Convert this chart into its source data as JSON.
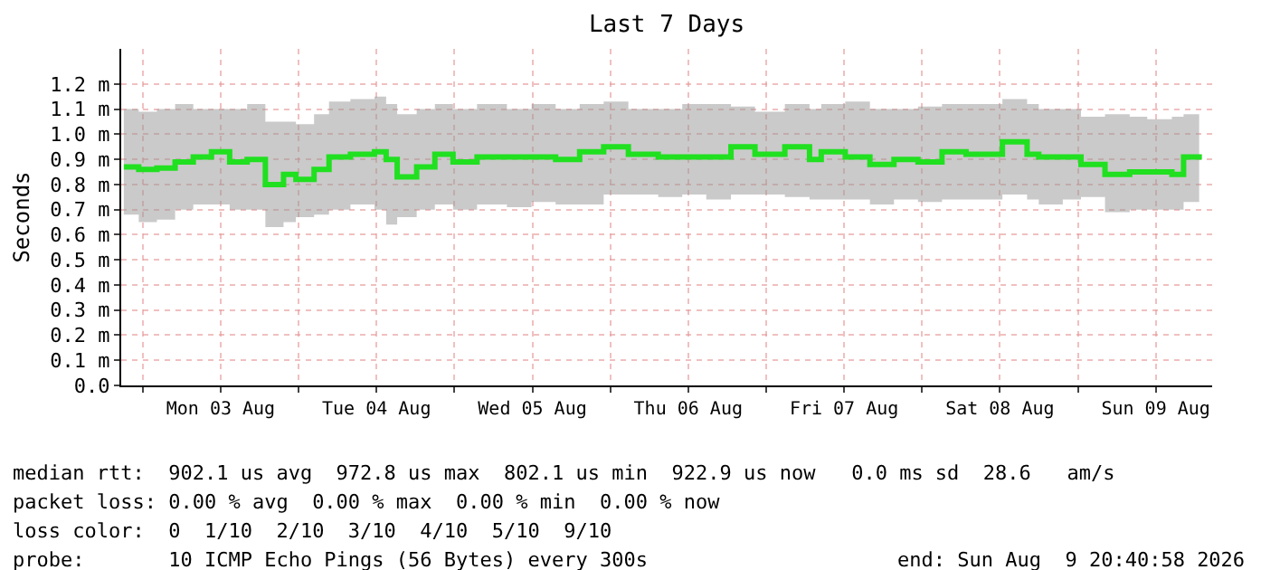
{
  "chart_data": {
    "type": "step",
    "title": "Last 7 Days",
    "ylabel": "Seconds",
    "x": [
      "2026-08-02T21:05",
      "2026-08-02T23:23",
      "2026-08-03T02:11",
      "2026-08-03T04:59",
      "2026-08-03T07:47",
      "2026-08-03T10:35",
      "2026-08-03T13:23",
      "2026-08-03T16:05",
      "2026-08-03T18:53",
      "2026-08-03T21:41",
      "2026-08-03T23:35",
      "2026-08-04T02:23",
      "2026-08-04T04:41",
      "2026-08-04T07:59",
      "2026-08-04T11:41",
      "2026-08-04T13:29",
      "2026-08-04T15:11",
      "2026-08-04T18:11",
      "2026-08-04T20:59",
      "2026-08-04T23:47",
      "2026-08-05T03:29",
      "2026-08-05T08:05",
      "2026-08-05T11:53",
      "2026-08-05T15:35",
      "2026-08-05T19:17",
      "2026-08-05T22:59",
      "2026-08-06T02:47",
      "2026-08-06T07:23",
      "2026-08-06T11:05",
      "2026-08-06T14:47",
      "2026-08-06T18:35",
      "2026-08-06T22:17",
      "2026-08-07T02:53",
      "2026-08-07T06:41",
      "2026-08-07T08:29",
      "2026-08-07T12:11",
      "2026-08-07T15:59",
      "2026-08-07T19:41",
      "2026-08-07T23:23",
      "2026-08-08T03:05",
      "2026-08-08T06:47",
      "2026-08-08T12:23",
      "2026-08-08T16:11",
      "2026-08-08T17:59",
      "2026-08-08T21:41",
      "2026-08-09T00:29",
      "2026-08-09T04:11",
      "2026-08-09T07:59",
      "2026-08-09T10:41",
      "2026-08-09T14:29",
      "2026-08-09T16:17",
      "2026-08-09T18:41"
    ],
    "series": [
      {
        "color": "#20e020",
        "values": [
          0.87,
          0.86,
          0.865,
          0.89,
          0.91,
          0.93,
          0.89,
          0.9,
          0.8,
          0.84,
          0.82,
          0.86,
          0.91,
          0.92,
          0.93,
          0.9,
          0.83,
          0.87,
          0.92,
          0.89,
          0.91,
          0.91,
          0.91,
          0.9,
          0.93,
          0.95,
          0.92,
          0.91,
          0.91,
          0.91,
          0.95,
          0.92,
          0.95,
          0.9,
          0.93,
          0.91,
          0.88,
          0.9,
          0.89,
          0.93,
          0.92,
          0.97,
          0.92,
          0.91,
          0.91,
          0.88,
          0.84,
          0.85,
          0.85,
          0.84,
          0.91,
          0.92
        ],
        "lower": [
          0.68,
          0.65,
          0.66,
          0.7,
          0.72,
          0.72,
          0.7,
          0.7,
          0.63,
          0.65,
          0.67,
          0.68,
          0.7,
          0.72,
          0.7,
          0.64,
          0.67,
          0.7,
          0.72,
          0.7,
          0.72,
          0.71,
          0.73,
          0.72,
          0.72,
          0.76,
          0.76,
          0.75,
          0.76,
          0.74,
          0.76,
          0.76,
          0.75,
          0.74,
          0.74,
          0.74,
          0.72,
          0.74,
          0.73,
          0.74,
          0.74,
          0.76,
          0.74,
          0.72,
          0.74,
          0.75,
          0.69,
          0.7,
          0.7,
          0.7,
          0.73,
          0.75
        ],
        "upper": [
          1.1,
          1.09,
          1.1,
          1.12,
          1.1,
          1.1,
          1.1,
          1.12,
          1.05,
          1.05,
          1.04,
          1.08,
          1.13,
          1.14,
          1.15,
          1.12,
          1.08,
          1.1,
          1.12,
          1.1,
          1.12,
          1.1,
          1.12,
          1.1,
          1.12,
          1.13,
          1.1,
          1.1,
          1.12,
          1.12,
          1.11,
          1.09,
          1.12,
          1.1,
          1.12,
          1.13,
          1.1,
          1.1,
          1.11,
          1.12,
          1.12,
          1.14,
          1.12,
          1.1,
          1.1,
          1.07,
          1.08,
          1.07,
          1.06,
          1.07,
          1.08,
          1.1
        ]
      }
    ],
    "xlim": [
      "2026-08-02T20:41",
      "2026-08-09T20:41"
    ],
    "xticks": [
      {
        "value": "2026-08-03T00:00",
        "label": null
      },
      {
        "value": "2026-08-03T12:00",
        "label": "Mon 03 Aug"
      },
      {
        "value": "2026-08-04T00:00",
        "label": null
      },
      {
        "value": "2026-08-04T12:00",
        "label": "Tue 04 Aug"
      },
      {
        "value": "2026-08-05T00:00",
        "label": null
      },
      {
        "value": "2026-08-05T12:00",
        "label": "Wed 05 Aug"
      },
      {
        "value": "2026-08-06T00:00",
        "label": null
      },
      {
        "value": "2026-08-06T12:00",
        "label": "Thu 06 Aug"
      },
      {
        "value": "2026-08-07T00:00",
        "label": null
      },
      {
        "value": "2026-08-07T12:00",
        "label": "Fri 07 Aug"
      },
      {
        "value": "2026-08-08T00:00",
        "label": null
      },
      {
        "value": "2026-08-08T12:00",
        "label": "Sat 08 Aug"
      },
      {
        "value": "2026-08-09T00:00",
        "label": null
      },
      {
        "value": "2026-08-09T12:00",
        "label": "Sun 09 Aug"
      }
    ],
    "ylim": [
      0,
      1.34
    ],
    "yticks": [
      {
        "value": 0,
        "label": "0.0"
      },
      {
        "value": 0.1,
        "label": "0.1 m"
      },
      {
        "value": 0.2,
        "label": "0.2 m"
      },
      {
        "value": 0.3,
        "label": "0.3 m"
      },
      {
        "value": 0.4,
        "label": "0.4 m"
      },
      {
        "value": 0.5,
        "label": "0.5 m"
      },
      {
        "value": 0.6,
        "label": "0.6 m"
      },
      {
        "value": 0.7,
        "label": "0.7 m"
      },
      {
        "value": 0.8,
        "label": "0.8 m"
      },
      {
        "value": 0.9,
        "label": "0.9 m"
      },
      {
        "value": 1.0,
        "label": "1.0 m"
      },
      {
        "value": 1.1,
        "label": "1.1 m"
      },
      {
        "value": 1.2,
        "label": "1.2 m"
      }
    ],
    "grid": true,
    "marker": "none",
    "line_style": "solid",
    "annotations": [
      "median rtt:  902.1 us avg  972.8 us max  802.1 us min  922.9 us now   0.0 ms sd  28.6   am/s",
      "packet loss: 0.00 % avg  0.00 % max  0.00 % min  0.00 % now",
      "loss color:  0  1/10  2/10  3/10  4/10  5/10  9/10",
      "probe:       10 ICMP Echo Pings (56 Bytes) every 300s",
      "end: Sun Aug  9 20:40:58 2026"
    ]
  }
}
